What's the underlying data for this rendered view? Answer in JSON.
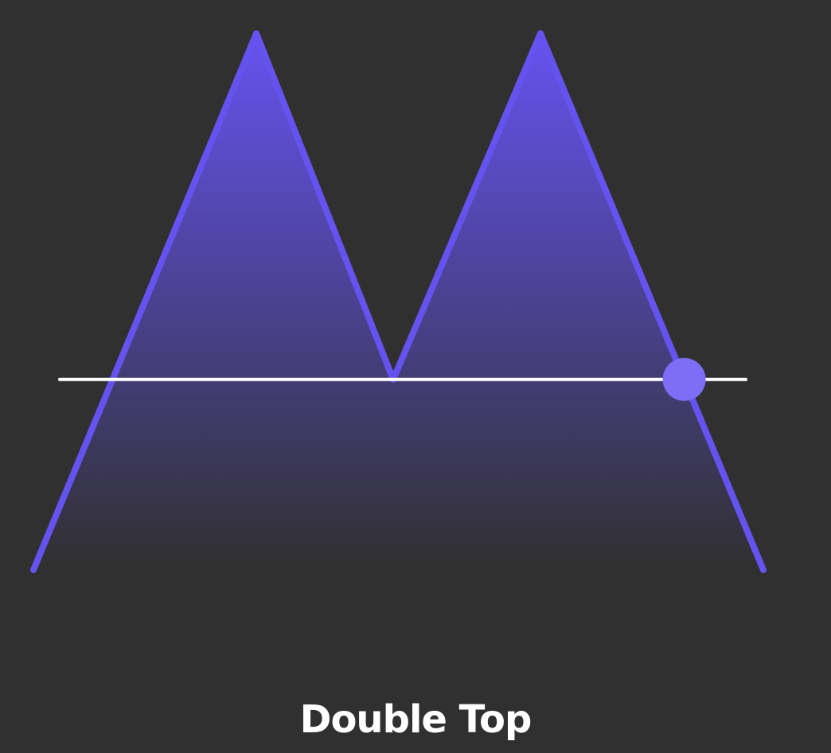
{
  "diagram": {
    "caption": "Double Top",
    "pattern": "double-top",
    "points": [
      {
        "role": "start",
        "level": 0
      },
      {
        "role": "first-peak",
        "level": 1
      },
      {
        "role": "neckline-trough",
        "level": 0.355
      },
      {
        "role": "second-peak",
        "level": 1
      },
      {
        "role": "end",
        "level": 0
      }
    ],
    "neckline_level": 0.355,
    "breakout_marker": "neckline-break-dot",
    "colors": {
      "background": "#303030",
      "price_line": "#6553f0",
      "fill_top": "#6553f0",
      "fill_bottom": "#303030",
      "neckline": "#ffffff",
      "marker": "#7c6ef5",
      "caption_text": "#ffffff"
    }
  }
}
